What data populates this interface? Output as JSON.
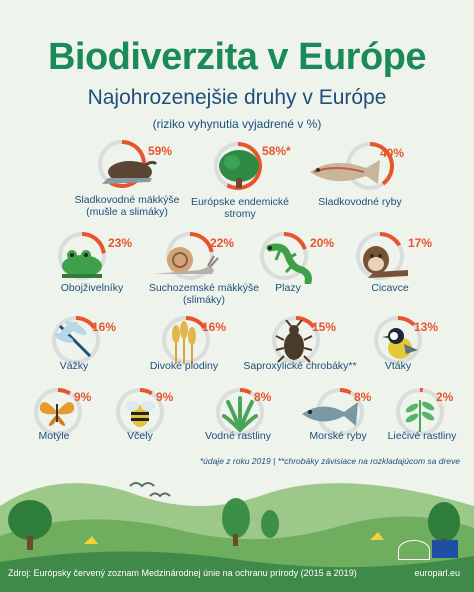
{
  "title": "Biodiverzita v Európe",
  "subtitle": "Najohrozenejšie druhy v Európe",
  "note": "(riziko vyhynutia vyjadrené v %)",
  "colors": {
    "accent": "#e8542b",
    "ring_track": "#d9dedd",
    "title": "#1b8a5a",
    "text": "#1f4f7a"
  },
  "items": [
    {
      "label": "Sladkovodné mäkkýše (mušle a slimáky)",
      "percent": "59%",
      "value": 59,
      "icon": "freshwater-mollusc-icon"
    },
    {
      "label": "Európske endemické stromy",
      "percent": "58%*",
      "value": 58,
      "icon": "tree-icon"
    },
    {
      "label": "Sladkovodné ryby",
      "percent": "40%",
      "value": 40,
      "icon": "freshwater-fish-icon"
    },
    {
      "label": "Obojživelníky",
      "percent": "23%",
      "value": 23,
      "icon": "frog-icon"
    },
    {
      "label": "Suchozemské mäkkýše (slimáky)",
      "percent": "22%",
      "value": 22,
      "icon": "snail-icon"
    },
    {
      "label": "Plazy",
      "percent": "20%",
      "value": 20,
      "icon": "lizard-icon"
    },
    {
      "label": "Cicavce",
      "percent": "17%",
      "value": 17,
      "icon": "otter-icon"
    },
    {
      "label": "Vážky",
      "percent": "16%",
      "value": 16,
      "icon": "dragonfly-icon"
    },
    {
      "label": "Divoké plodiny",
      "percent": "16%",
      "value": 16,
      "icon": "wheat-icon"
    },
    {
      "label": "Saproxylické chrobáky**",
      "percent": "15%",
      "value": 15,
      "icon": "beetle-icon"
    },
    {
      "label": "Vtáky",
      "percent": "13%",
      "value": 13,
      "icon": "bird-icon"
    },
    {
      "label": "Motýle",
      "percent": "9%",
      "value": 9,
      "icon": "butterfly-icon"
    },
    {
      "label": "Včely",
      "percent": "9%",
      "value": 9,
      "icon": "bee-icon"
    },
    {
      "label": "Vodné rastliny",
      "percent": "8%",
      "value": 8,
      "icon": "water-plant-icon"
    },
    {
      "label": "Morské ryby",
      "percent": "8%",
      "value": 8,
      "icon": "marine-fish-icon"
    },
    {
      "label": "Liečivé rastliny",
      "percent": "2%",
      "value": 2,
      "icon": "medicinal-plant-icon"
    }
  ],
  "footnote": "*údaje z roku 2019 | **chrobáky závisiace na rozkladajúcom sa dreve",
  "source": "Zdroj: Európsky červený zoznam Medzinárodnej únie na ochranu prírody (2015 a 2019)",
  "europarl": "europarl.eu"
}
